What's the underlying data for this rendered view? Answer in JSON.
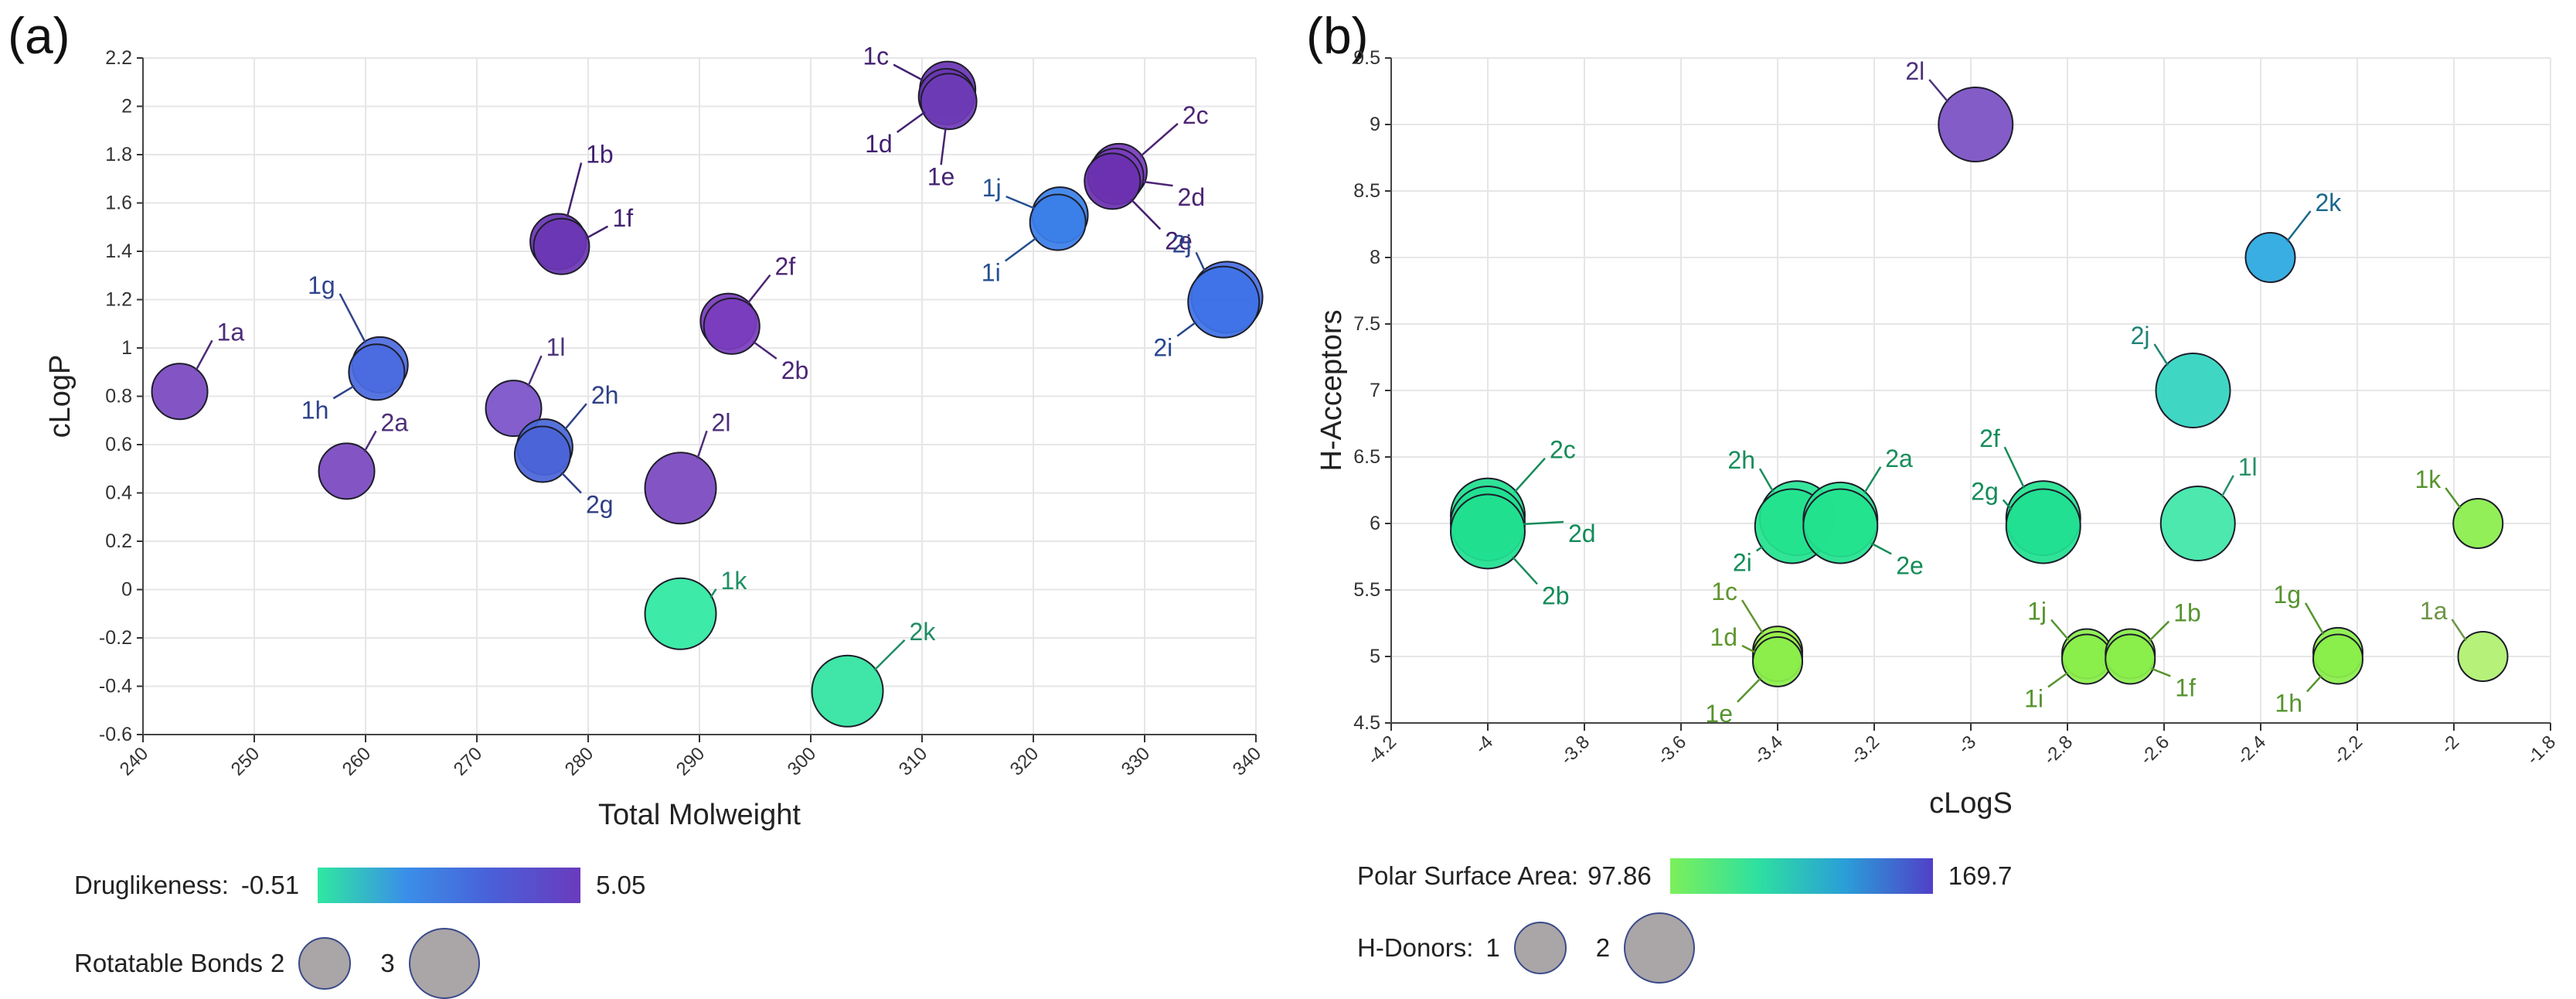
{
  "chart_data": [
    {
      "panel": "(a)",
      "type": "scatter",
      "xlabel": "Total Molweight",
      "ylabel": "cLogP",
      "xlim": [
        240,
        340
      ],
      "ylim": [
        -0.6,
        2.2
      ],
      "xticks": [
        "240",
        "250",
        "260",
        "270",
        "280",
        "290",
        "300",
        "310",
        "320",
        "330",
        "340"
      ],
      "yticks": [
        "-0.6",
        "-0.4",
        "-0.2",
        "0",
        "0.2",
        "0.4",
        "0.6",
        "0.8",
        "1",
        "1.2",
        "1.4",
        "1.6",
        "1.8",
        "2",
        "2.2"
      ],
      "grid": true,
      "color_legend": {
        "label": "Druglikeness:",
        "min": "-0.51",
        "max": "5.05",
        "colors": [
          "#2fe8a0",
          "#3a8fe8",
          "#4a5fd8",
          "#6a3bbd"
        ]
      },
      "size_legend": {
        "label": "Rotatable Bonds",
        "entries": [
          "2",
          "3"
        ]
      },
      "points": [
        {
          "label": "1a",
          "x": 243.3,
          "y": 0.82,
          "size": 2,
          "color": "#7a48c0"
        },
        {
          "label": "2a",
          "x": 258.3,
          "y": 0.49,
          "size": 2,
          "color": "#7a48c0"
        },
        {
          "label": "1g",
          "x": 261.3,
          "y": 0.93,
          "size": 2,
          "color": "#4f6de0"
        },
        {
          "label": "1h",
          "x": 261.0,
          "y": 0.9,
          "size": 2,
          "color": "#4a6ae0"
        },
        {
          "label": "1l",
          "x": 273.3,
          "y": 0.75,
          "size": 2,
          "color": "#7a52c8"
        },
        {
          "label": "2h",
          "x": 276.1,
          "y": 0.59,
          "size": 2,
          "color": "#4868d8"
        },
        {
          "label": "2g",
          "x": 275.9,
          "y": 0.56,
          "size": 2,
          "color": "#4a64d8"
        },
        {
          "label": "1b",
          "x": 277.3,
          "y": 1.44,
          "size": 2,
          "color": "#6a36b4"
        },
        {
          "label": "1f",
          "x": 277.6,
          "y": 1.42,
          "size": 2,
          "color": "#6a36b4"
        },
        {
          "label": "2l",
          "x": 288.3,
          "y": 0.42,
          "size": 3,
          "color": "#7a48c0"
        },
        {
          "label": "1k",
          "x": 288.3,
          "y": -0.1,
          "size": 3,
          "color": "#2ee8a0"
        },
        {
          "label": "2f",
          "x": 292.6,
          "y": 1.11,
          "size": 2,
          "color": "#7a3cbc"
        },
        {
          "label": "2b",
          "x": 292.9,
          "y": 1.09,
          "size": 2,
          "color": "#7a3cbc"
        },
        {
          "label": "2k",
          "x": 303.3,
          "y": -0.42,
          "size": 3,
          "color": "#30e4a0"
        },
        {
          "label": "1c",
          "x": 312.3,
          "y": 2.07,
          "size": 2,
          "color": "#6a36b4"
        },
        {
          "label": "1d",
          "x": 312.2,
          "y": 2.04,
          "size": 2,
          "color": "#6a36b4"
        },
        {
          "label": "1e",
          "x": 312.4,
          "y": 2.02,
          "size": 2,
          "color": "#6e3ab6"
        },
        {
          "label": "1j",
          "x": 322.4,
          "y": 1.55,
          "size": 2,
          "color": "#3a82ea"
        },
        {
          "label": "1i",
          "x": 322.2,
          "y": 1.52,
          "size": 2,
          "color": "#3a7ee8"
        },
        {
          "label": "2c",
          "x": 327.7,
          "y": 1.73,
          "size": 2,
          "color": "#7a3cbc"
        },
        {
          "label": "2d",
          "x": 327.4,
          "y": 1.71,
          "size": 2,
          "color": "#7a3cbc"
        },
        {
          "label": "2e",
          "x": 327.1,
          "y": 1.69,
          "size": 2,
          "color": "#6a30ae"
        },
        {
          "label": "2j",
          "x": 337.4,
          "y": 1.21,
          "size": 3,
          "color": "#4a70e4"
        },
        {
          "label": "2i",
          "x": 337.1,
          "y": 1.19,
          "size": 3,
          "color": "#3e72e6"
        }
      ]
    },
    {
      "panel": "(b)",
      "type": "scatter",
      "xlabel": "cLogS",
      "ylabel": "H-Acceptors",
      "xlim": [
        -4.2,
        -1.8
      ],
      "ylim": [
        4.5,
        9.5
      ],
      "xticks": [
        "-4.2",
        "-4",
        "-3.8",
        "-3.6",
        "-3.4",
        "-3.2",
        "-3",
        "-2.8",
        "-2.6",
        "-2.4",
        "-2.2",
        "-2",
        "-1.8"
      ],
      "yticks": [
        "4.5",
        "5",
        "5.5",
        "6",
        "6.5",
        "7",
        "7.5",
        "8",
        "8.5",
        "9",
        "9.5"
      ],
      "grid": true,
      "color_legend": {
        "label": "Polar Surface Area:",
        "min": "97.86",
        "max": "169.7",
        "colors": [
          "#7cf05a",
          "#2ee0a0",
          "#2a9ed8",
          "#5040c8"
        ]
      },
      "size_legend": {
        "label": "H-Donors:",
        "entries": [
          "1",
          "2"
        ]
      },
      "points": [
        {
          "label": "2c",
          "x": -4.0,
          "y": 6.06,
          "size": 2,
          "color": "#20e090"
        },
        {
          "label": "2d",
          "x": -4.0,
          "y": 6.0,
          "size": 2,
          "color": "#20e090"
        },
        {
          "label": "2b",
          "x": -4.0,
          "y": 5.94,
          "size": 2,
          "color": "#20e090"
        },
        {
          "label": "1c",
          "x": -3.4,
          "y": 5.04,
          "size": 1,
          "color": "#9af048"
        },
        {
          "label": "1d",
          "x": -3.4,
          "y": 5.0,
          "size": 1,
          "color": "#9af048"
        },
        {
          "label": "1e",
          "x": -3.4,
          "y": 4.96,
          "size": 1,
          "color": "#8aee4a"
        },
        {
          "label": "2h",
          "x": -3.36,
          "y": 6.04,
          "size": 2,
          "color": "#28e494"
        },
        {
          "label": "2i",
          "x": -3.37,
          "y": 5.98,
          "size": 2,
          "color": "#22e28e"
        },
        {
          "label": "2a",
          "x": -3.27,
          "y": 6.03,
          "size": 2,
          "color": "#28e494"
        },
        {
          "label": "2e",
          "x": -3.27,
          "y": 5.98,
          "size": 2,
          "color": "#22e28e"
        },
        {
          "label": "2l",
          "x": -2.99,
          "y": 9.0,
          "size": 2,
          "color": "#7a50c4"
        },
        {
          "label": "2f",
          "x": -2.85,
          "y": 6.04,
          "size": 2,
          "color": "#24e290"
        },
        {
          "label": "2g",
          "x": -2.85,
          "y": 5.98,
          "size": 2,
          "color": "#20e090"
        },
        {
          "label": "1j",
          "x": -2.76,
          "y": 5.02,
          "size": 1,
          "color": "#8aee4a"
        },
        {
          "label": "1i",
          "x": -2.76,
          "y": 4.98,
          "size": 1,
          "color": "#8aee4a"
        },
        {
          "label": "1b",
          "x": -2.67,
          "y": 5.02,
          "size": 1,
          "color": "#8aee4a"
        },
        {
          "label": "1f",
          "x": -2.67,
          "y": 4.98,
          "size": 1,
          "color": "#8aee4a"
        },
        {
          "label": "2j",
          "x": -2.54,
          "y": 7.0,
          "size": 2,
          "color": "#30d4c0"
        },
        {
          "label": "1l",
          "x": -2.53,
          "y": 6.0,
          "size": 2,
          "color": "#40e6a8"
        },
        {
          "label": "2k",
          "x": -2.38,
          "y": 8.0,
          "size": 1,
          "color": "#2aa8e0"
        },
        {
          "label": "1g",
          "x": -2.24,
          "y": 5.03,
          "size": 1,
          "color": "#8aee4a"
        },
        {
          "label": "1h",
          "x": -2.24,
          "y": 4.98,
          "size": 1,
          "color": "#8aee4a"
        },
        {
          "label": "1k",
          "x": -1.95,
          "y": 6.0,
          "size": 1,
          "color": "#8aee4a"
        },
        {
          "label": "1a",
          "x": -1.94,
          "y": 5.0,
          "size": 1,
          "color": "#b0f070"
        }
      ]
    }
  ]
}
